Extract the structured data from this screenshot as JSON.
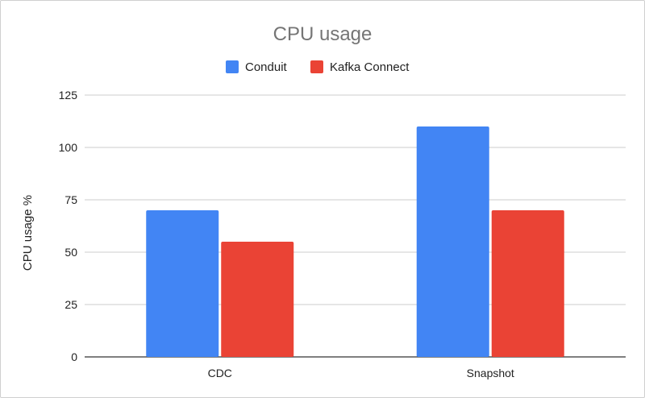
{
  "chart_data": {
    "type": "bar",
    "title": "CPU usage",
    "xlabel": "",
    "ylabel": "CPU usage %",
    "categories": [
      "CDC",
      "Snapshot"
    ],
    "series": [
      {
        "name": "Conduit",
        "color": "#4285f4",
        "values": [
          70,
          110
        ]
      },
      {
        "name": "Kafka Connect",
        "color": "#ea4335",
        "values": [
          55,
          70
        ]
      }
    ],
    "ylim": [
      0,
      125
    ],
    "yticks": [
      "0",
      "25",
      "50",
      "75",
      "100",
      "125"
    ],
    "grid": true,
    "legend_position": "top"
  }
}
